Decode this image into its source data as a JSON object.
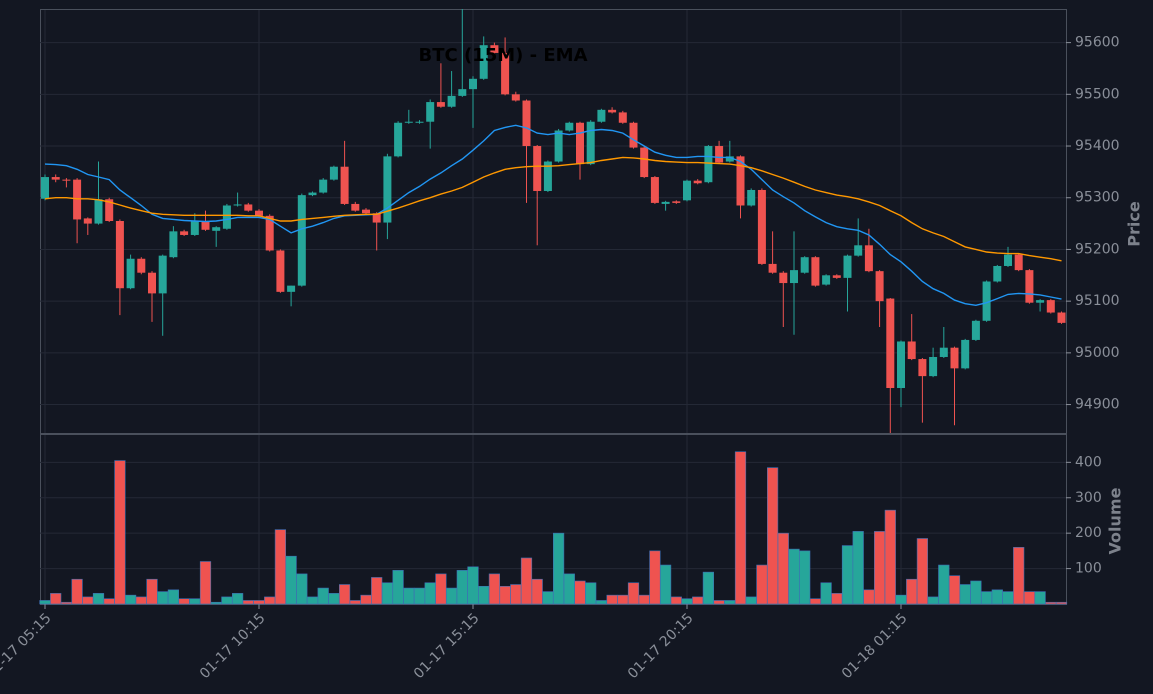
{
  "chart_data": [
    {
      "type": "candlestick",
      "title": "BTC (15M) - EMA",
      "ylabel": "Price",
      "up_color": "#26a69a",
      "down_color": "#ef5350",
      "open": [
        95298,
        95340,
        95335,
        95335,
        95260,
        95250,
        95297,
        95255,
        95125,
        95182,
        95155,
        95115,
        95185,
        95235,
        95228,
        95255,
        95236,
        95240,
        95285,
        95287,
        95275,
        95265,
        95198,
        95118,
        95130,
        95305,
        95310,
        95335,
        95360,
        95288,
        95277,
        95270,
        95252,
        95380,
        95445,
        95445,
        95447,
        95485,
        95476,
        95497,
        95510,
        95530,
        95595,
        95580,
        95500,
        95488,
        95400,
        95313,
        95370,
        95430,
        95445,
        95365,
        95447,
        95470,
        95465,
        95445,
        95397,
        95340,
        95288,
        95293,
        95295,
        95333,
        95330,
        95400,
        95370,
        95380,
        95285,
        95315,
        95172,
        95155,
        95135,
        95155,
        95185,
        95132,
        95150,
        95145,
        95188,
        95208,
        95158,
        95105,
        94932,
        95022,
        94988,
        94955,
        94992,
        95010,
        94970,
        95025,
        95062,
        95138,
        95168,
        95190,
        95160,
        95097,
        95102,
        95078
      ],
      "high": [
        95345,
        95345,
        95338,
        95338,
        95262,
        95370,
        95300,
        95258,
        95190,
        95185,
        95158,
        95190,
        95245,
        95238,
        95270,
        95275,
        95245,
        95288,
        95310,
        95290,
        95278,
        95268,
        95200,
        95130,
        95308,
        95312,
        95338,
        95362,
        95410,
        95292,
        95280,
        95272,
        95385,
        95448,
        95470,
        95450,
        95490,
        95560,
        95545,
        95665,
        95535,
        95612,
        95600,
        95610,
        95505,
        95490,
        95402,
        95372,
        95433,
        95447,
        95447,
        95450,
        95472,
        95475,
        95468,
        95447,
        95400,
        95342,
        95294,
        95295,
        95335,
        95336,
        95402,
        95410,
        95410,
        95382,
        95318,
        95318,
        95235,
        95158,
        95235,
        95187,
        95187,
        95152,
        95152,
        95190,
        95260,
        95240,
        95160,
        95106,
        95024,
        95075,
        94990,
        95010,
        95050,
        95012,
        95027,
        95064,
        95140,
        95170,
        95205,
        95192,
        95162,
        95104,
        95104,
        95080
      ],
      "low": [
        95295,
        95330,
        95320,
        95212,
        95228,
        95248,
        95253,
        95073,
        95123,
        95152,
        95060,
        95033,
        95183,
        95226,
        95226,
        95236,
        95205,
        95238,
        95283,
        95273,
        95263,
        95196,
        95116,
        95090,
        95128,
        95303,
        95308,
        95333,
        95286,
        95273,
        95268,
        95198,
        95220,
        95378,
        95443,
        95443,
        95395,
        95474,
        95474,
        95495,
        95435,
        95528,
        95578,
        95498,
        95486,
        95290,
        95208,
        95311,
        95368,
        95428,
        95335,
        95363,
        95445,
        95463,
        95443,
        95395,
        95338,
        95288,
        95275,
        95288,
        95293,
        95326,
        95328,
        95366,
        95368,
        95260,
        95283,
        95170,
        95153,
        95050,
        95035,
        95153,
        95128,
        95130,
        95143,
        95080,
        95186,
        95156,
        95050,
        94845,
        94895,
        94986,
        94865,
        94953,
        94990,
        94860,
        94968,
        95023,
        95060,
        95136,
        95166,
        95158,
        95095,
        95080,
        95076,
        95056
      ],
      "close": [
        95340,
        95335,
        95333,
        95258,
        95250,
        95297,
        95255,
        95125,
        95182,
        95155,
        95115,
        95188,
        95235,
        95228,
        95255,
        95238,
        95243,
        95285,
        95287,
        95275,
        95265,
        95198,
        95118,
        95130,
        95305,
        95310,
        95335,
        95360,
        95288,
        95275,
        95270,
        95252,
        95380,
        95445,
        95447,
        95447,
        95485,
        95476,
        95497,
        95510,
        95530,
        95595,
        95580,
        95500,
        95488,
        95400,
        95313,
        95370,
        95430,
        95445,
        95365,
        95447,
        95470,
        95465,
        95445,
        95397,
        95340,
        95290,
        95292,
        95290,
        95333,
        95328,
        95400,
        95368,
        95380,
        95285,
        95315,
        95172,
        95155,
        95135,
        95160,
        95185,
        95130,
        95150,
        95145,
        95188,
        95208,
        95158,
        95100,
        94932,
        95022,
        94988,
        94955,
        94992,
        95010,
        94970,
        95025,
        95062,
        95138,
        95168,
        95190,
        95160,
        95097,
        95102,
        95078,
        95058
      ],
      "series": [
        {
          "color": "#2196f3",
          "values": [
            95365,
            95364,
            95362,
            95355,
            95345,
            95340,
            95335,
            95315,
            95300,
            95285,
            95268,
            95260,
            95258,
            95256,
            95255,
            95254,
            95255,
            95258,
            95262,
            95262,
            95262,
            95258,
            95245,
            95232,
            95240,
            95245,
            95252,
            95260,
            95265,
            95266,
            95267,
            95268,
            95280,
            95295,
            95310,
            95322,
            95336,
            95348,
            95362,
            95375,
            95392,
            95410,
            95430,
            95436,
            95440,
            95435,
            95425,
            95422,
            95425,
            95422,
            95425,
            95430,
            95432,
            95430,
            95425,
            95412,
            95400,
            95388,
            95382,
            95378,
            95378,
            95380,
            95380,
            95378,
            95378,
            95370,
            95355,
            95335,
            95315,
            95302,
            95290,
            95275,
            95263,
            95252,
            95244,
            95240,
            95237,
            95228,
            95210,
            95190,
            95176,
            95158,
            95138,
            95124,
            95115,
            95102,
            95095,
            95092,
            95097,
            95105,
            95113,
            95115,
            95114,
            95112,
            95108,
            95104
          ]
        },
        {
          "color": "#ff9800",
          "values": [
            95298,
            95300,
            95300,
            95298,
            95298,
            95296,
            95292,
            95286,
            95280,
            95275,
            95270,
            95268,
            95267,
            95266,
            95266,
            95266,
            95266,
            95266,
            95266,
            95265,
            95265,
            95260,
            95255,
            95255,
            95258,
            95260,
            95262,
            95264,
            95266,
            95267,
            95268,
            95268,
            95274,
            95280,
            95287,
            95294,
            95300,
            95307,
            95313,
            95320,
            95330,
            95340,
            95348,
            95355,
            95358,
            95360,
            95361,
            95361,
            95362,
            95364,
            95366,
            95368,
            95372,
            95375,
            95378,
            95377,
            95375,
            95372,
            95370,
            95369,
            95368,
            95368,
            95367,
            95366,
            95365,
            95362,
            95358,
            95352,
            95345,
            95338,
            95330,
            95322,
            95315,
            95310,
            95305,
            95302,
            95298,
            95292,
            95285,
            95275,
            95265,
            95252,
            95240,
            95232,
            95225,
            95215,
            95205,
            95200,
            95195,
            95193,
            95192,
            95192,
            95188,
            95185,
            95182,
            95178
          ]
        }
      ],
      "ylim": [
        94845,
        95665
      ],
      "yticks": [
        94900,
        95000,
        95100,
        95200,
        95300,
        95400,
        95500,
        95600
      ],
      "grid": true
    },
    {
      "type": "bar",
      "ylabel": "Volume",
      "categories": [
        "01-17 05:15",
        null,
        null,
        null,
        null,
        null,
        null,
        null,
        null,
        null,
        null,
        null,
        null,
        null,
        null,
        null,
        null,
        null,
        null,
        null,
        "01-17 10:15",
        null,
        null,
        null,
        null,
        null,
        null,
        null,
        null,
        null,
        null,
        null,
        null,
        null,
        null,
        null,
        null,
        null,
        null,
        null,
        "01-17 15:15",
        null,
        null,
        null,
        null,
        null,
        null,
        null,
        null,
        null,
        null,
        null,
        null,
        null,
        null,
        null,
        null,
        null,
        null,
        null,
        "01-17 20:15",
        null,
        null,
        null,
        null,
        null,
        null,
        null,
        null,
        null,
        null,
        null,
        null,
        null,
        null,
        null,
        null,
        null,
        null,
        null,
        "01-18 01:15",
        null,
        null,
        null,
        null,
        null,
        null,
        null,
        null,
        null,
        null,
        null,
        null,
        null,
        null,
        null
      ],
      "values": [
        10,
        30,
        5,
        70,
        20,
        30,
        15,
        405,
        25,
        20,
        70,
        35,
        40,
        15,
        15,
        120,
        5,
        20,
        30,
        10,
        10,
        20,
        210,
        135,
        85,
        20,
        45,
        30,
        55,
        10,
        25,
        75,
        60,
        95,
        45,
        45,
        60,
        85,
        45,
        95,
        105,
        50,
        85,
        50,
        55,
        130,
        70,
        35,
        200,
        85,
        65,
        60,
        10,
        25,
        25,
        60,
        25,
        150,
        110,
        20,
        15,
        20,
        90,
        10,
        10,
        430,
        20,
        110,
        385,
        200,
        155,
        150,
        15,
        60,
        30,
        165,
        205,
        40,
        205,
        265,
        25,
        70,
        185,
        20,
        110,
        80,
        55,
        65,
        35,
        40,
        35,
        160,
        35,
        35,
        5,
        5
      ],
      "ylim": [
        0,
        480
      ],
      "yticks": [
        100,
        200,
        300,
        400
      ],
      "grid": true
    }
  ]
}
